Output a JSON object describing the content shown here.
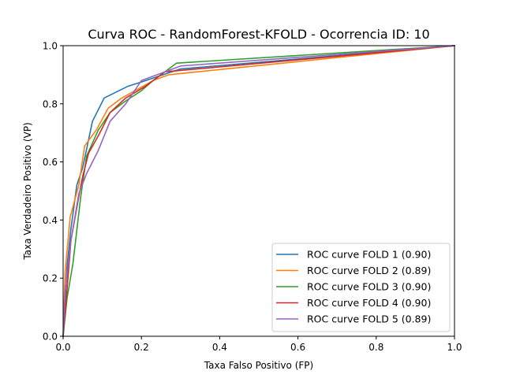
{
  "chart_data": {
    "type": "line",
    "title": "Curva ROC - RandomForest-KFOLD - Ocorrencia ID: 10",
    "xlabel": "Taxa Falso Positivo (FP)",
    "ylabel": "Taxa Verdadeiro Positivo (VP)",
    "xlim": [
      0,
      1
    ],
    "ylim": [
      0,
      1
    ],
    "xticks": [
      "0.0",
      "0.2",
      "0.4",
      "0.6",
      "0.8",
      "1.0"
    ],
    "yticks": [
      "0.0",
      "0.2",
      "0.4",
      "0.6",
      "0.8",
      "1.0"
    ],
    "grid": false,
    "legend_position": "lower-right",
    "series": [
      {
        "name": "ROC curve FOLD 1 (0.90)",
        "color": "#1f77b4",
        "x": [
          0,
          0.01,
          0.02,
          0.035,
          0.05,
          0.075,
          0.105,
          0.165,
          0.2,
          0.3,
          1.0
        ],
        "y": [
          0,
          0.24,
          0.37,
          0.52,
          0.58,
          0.74,
          0.82,
          0.86,
          0.875,
          0.92,
          1.0
        ]
      },
      {
        "name": "ROC curve FOLD 2 (0.89)",
        "color": "#ff7f0e",
        "x": [
          0,
          0.005,
          0.018,
          0.04,
          0.055,
          0.085,
          0.115,
          0.15,
          0.23,
          0.27,
          1.0
        ],
        "y": [
          0,
          0.22,
          0.41,
          0.52,
          0.655,
          0.71,
          0.785,
          0.82,
          0.88,
          0.9,
          1.0
        ]
      },
      {
        "name": "ROC curve FOLD 3 (0.90)",
        "color": "#2ca02c",
        "x": [
          0,
          0.01,
          0.025,
          0.045,
          0.06,
          0.09,
          0.12,
          0.16,
          0.2,
          0.23,
          0.29,
          1.0
        ],
        "y": [
          0,
          0.13,
          0.25,
          0.48,
          0.62,
          0.71,
          0.77,
          0.81,
          0.845,
          0.88,
          0.94,
          1.0
        ]
      },
      {
        "name": "ROC curve FOLD 4 (0.90)",
        "color": "#d62728",
        "x": [
          0,
          0.01,
          0.02,
          0.04,
          0.05,
          0.065,
          0.09,
          0.12,
          0.16,
          0.21,
          0.26,
          1.0
        ],
        "y": [
          0,
          0.16,
          0.33,
          0.48,
          0.55,
          0.63,
          0.69,
          0.77,
          0.82,
          0.86,
          0.91,
          1.0
        ]
      },
      {
        "name": "ROC curve FOLD 5 (0.89)",
        "color": "#9467bd",
        "x": [
          0,
          0.005,
          0.02,
          0.04,
          0.06,
          0.075,
          0.09,
          0.12,
          0.16,
          0.2,
          0.3,
          1.0
        ],
        "y": [
          0,
          0.15,
          0.33,
          0.49,
          0.56,
          0.6,
          0.64,
          0.74,
          0.8,
          0.88,
          0.93,
          1.0
        ]
      }
    ]
  }
}
